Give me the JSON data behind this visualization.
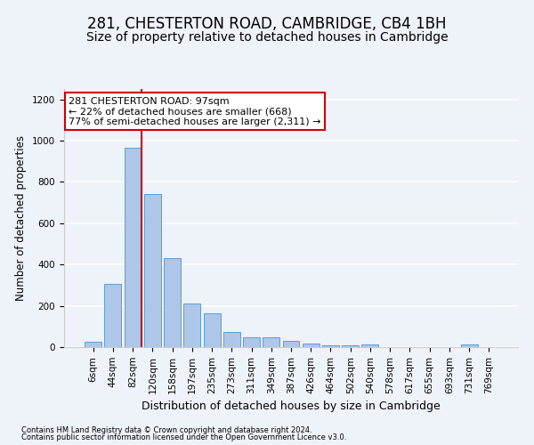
{
  "title1": "281, CHESTERTON ROAD, CAMBRIDGE, CB4 1BH",
  "title2": "Size of property relative to detached houses in Cambridge",
  "xlabel": "Distribution of detached houses by size in Cambridge",
  "ylabel": "Number of detached properties",
  "bin_labels": [
    "6sqm",
    "44sqm",
    "82sqm",
    "120sqm",
    "158sqm",
    "197sqm",
    "235sqm",
    "273sqm",
    "311sqm",
    "349sqm",
    "387sqm",
    "426sqm",
    "464sqm",
    "502sqm",
    "540sqm",
    "578sqm",
    "617sqm",
    "655sqm",
    "693sqm",
    "731sqm",
    "769sqm"
  ],
  "bar_values": [
    25,
    305,
    965,
    740,
    430,
    210,
    165,
    75,
    48,
    48,
    30,
    18,
    10,
    10,
    12,
    0,
    0,
    0,
    0,
    12,
    0
  ],
  "bar_color": "#aec6e8",
  "bar_edge_color": "#5a9fd4",
  "property_bin_index": 2,
  "red_line_color": "#cc0000",
  "annotation_text": "281 CHESTERTON ROAD: 97sqm\n← 22% of detached houses are smaller (668)\n77% of semi-detached houses are larger (2,311) →",
  "annotation_box_color": "#cc0000",
  "footer1": "Contains HM Land Registry data © Crown copyright and database right 2024.",
  "footer2": "Contains public sector information licensed under the Open Government Licence v3.0.",
  "ylim": [
    0,
    1250
  ],
  "yticks": [
    0,
    200,
    400,
    600,
    800,
    1000,
    1200
  ],
  "bg_color": "#eef2f9",
  "grid_color": "#ffffff",
  "title1_fontsize": 12,
  "title2_fontsize": 10,
  "annotation_fontsize": 8,
  "xlabel_fontsize": 9,
  "ylabel_fontsize": 8.5,
  "tick_fontsize": 7.5,
  "footer_fontsize": 6
}
